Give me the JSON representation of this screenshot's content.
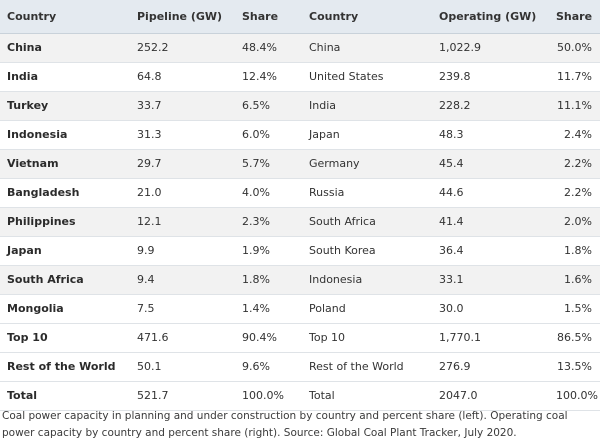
{
  "table": {
    "headers": [
      "Country",
      "Pipeline (GW)",
      "Share",
      "Country",
      "Operating (GW)",
      "Share"
    ],
    "rows": [
      [
        "China",
        "252.2",
        "48.4%",
        "China",
        "1,022.9",
        "50.0%"
      ],
      [
        "India",
        "64.8",
        "12.4%",
        "United States",
        "239.8",
        "11.7%"
      ],
      [
        "Turkey",
        "33.7",
        "6.5%",
        "India",
        "228.2",
        "11.1%"
      ],
      [
        "Indonesia",
        "31.3",
        "6.0%",
        "Japan",
        "48.3",
        "2.4%"
      ],
      [
        "Vietnam",
        "29.7",
        "5.7%",
        "Germany",
        "45.4",
        "2.2%"
      ],
      [
        "Bangladesh",
        "21.0",
        "4.0%",
        "Russia",
        "44.6",
        "2.2%"
      ],
      [
        "Philippines",
        "12.1",
        "2.3%",
        "South Africa",
        "41.4",
        "2.0%"
      ],
      [
        "Japan",
        "9.9",
        "1.9%",
        "South Korea",
        "36.4",
        "1.8%"
      ],
      [
        "South Africa",
        "9.4",
        "1.8%",
        "Indonesia",
        "33.1",
        "1.6%"
      ],
      [
        "Mongolia",
        "7.5",
        "1.4%",
        "Poland",
        "30.0",
        "1.5%"
      ],
      [
        "Top 10",
        "471.6",
        "90.4%",
        "Top 10",
        "1,770.1",
        "86.5%"
      ],
      [
        "Rest of the World",
        "50.1",
        "9.6%",
        "Rest of the World",
        "276.9",
        "13.5%"
      ],
      [
        "Total",
        "521.7",
        "100.0%",
        "Total",
        "2047.0",
        "100.0%"
      ]
    ]
  },
  "caption": "Coal power capacity in planning and under construction by country and percent share (left). Operating coal power capacity by country and percent share (right). Source: Global Coal Plant Tracker, July 2020.",
  "colors": {
    "header_bg": "#e4eaf0",
    "stripe_bg": "#f2f2f2"
  }
}
